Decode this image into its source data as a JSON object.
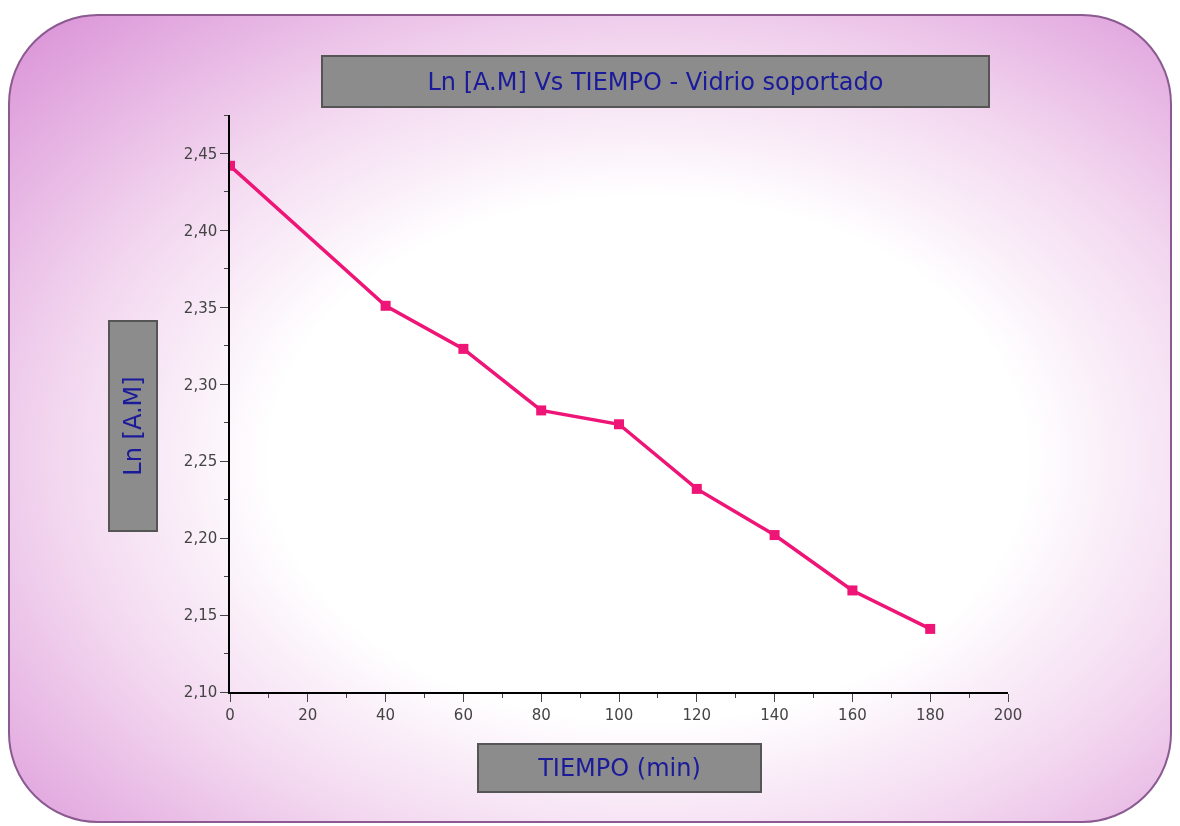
{
  "chart_data": {
    "type": "line",
    "title": "Ln [A.M] Vs TIEMPO -   Vidrio soportado",
    "xlabel": "TIEMPO (min)",
    "ylabel": "Ln [A.M]",
    "x": [
      0,
      40,
      60,
      80,
      100,
      120,
      140,
      160,
      180
    ],
    "series": [
      {
        "color": "#ee1577",
        "values": [
          2.442,
          2.351,
          2.323,
          2.283,
          2.274,
          2.232,
          2.202,
          2.166,
          2.141
        ]
      }
    ],
    "xlim": [
      0,
      200
    ],
    "xticks": [
      0,
      20,
      40,
      60,
      80,
      100,
      120,
      140,
      160,
      180,
      200
    ],
    "ylim": [
      2.1,
      2.475
    ],
    "yticks": [
      {
        "value": 2.1,
        "label": "2,10"
      },
      {
        "value": 2.15,
        "label": "2,15"
      },
      {
        "value": 2.2,
        "label": "2,20"
      },
      {
        "value": 2.25,
        "label": "2,25"
      },
      {
        "value": 2.3,
        "label": "2,30"
      },
      {
        "value": 2.35,
        "label": "2,35"
      },
      {
        "value": 2.4,
        "label": "2,40"
      },
      {
        "value": 2.45,
        "label": "2,45"
      }
    ],
    "grid": false,
    "legend": false,
    "marker": "square",
    "line_style": "solid"
  }
}
